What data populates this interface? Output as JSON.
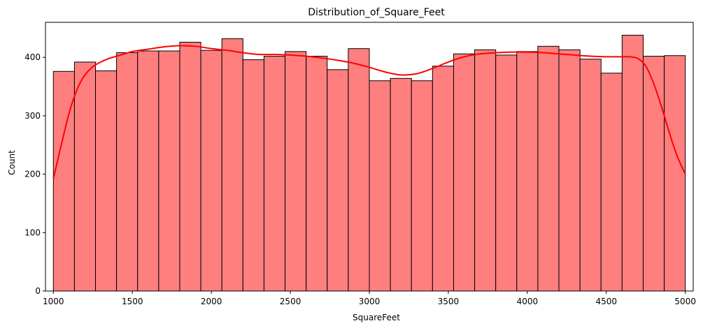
{
  "colors": {
    "bar_fill": "#ff7f7f",
    "bar_edge": "#000000",
    "kde_line": "#ff0000",
    "background": "#ffffff"
  },
  "chart_data": {
    "type": "bar",
    "subtype": "histogram_with_kde",
    "title": "Distribution_of_Square_Feet",
    "xlabel": "SquareFeet",
    "ylabel": "Count",
    "xlim": [
      950,
      5050
    ],
    "ylim": [
      0,
      460
    ],
    "xticks": [
      1000,
      1500,
      2000,
      2500,
      3000,
      3500,
      4000,
      4500,
      5000
    ],
    "yticks": [
      0,
      100,
      200,
      300,
      400
    ],
    "grid": false,
    "bin_start": 1000,
    "bin_end": 5000,
    "bin_counts": [
      376,
      392,
      377,
      408,
      411,
      411,
      426,
      412,
      432,
      396,
      402,
      410,
      402,
      379,
      415,
      360,
      364,
      360,
      385,
      406,
      413,
      404,
      410,
      419,
      413,
      397,
      373,
      438,
      402,
      403
    ],
    "kde": {
      "x": [
        1000,
        1050,
        1100,
        1150,
        1200,
        1250,
        1300,
        1350,
        1400,
        1500,
        1600,
        1700,
        1800,
        1900,
        2000,
        2100,
        2200,
        2300,
        2400,
        2500,
        2600,
        2700,
        2800,
        2900,
        3000,
        3100,
        3200,
        3300,
        3400,
        3500,
        3600,
        3700,
        3800,
        3900,
        4000,
        4100,
        4200,
        4300,
        4400,
        4500,
        4600,
        4650,
        4700,
        4750,
        4800,
        4850,
        4900,
        4950,
        5000
      ],
      "y": [
        192,
        250,
        305,
        345,
        370,
        384,
        392,
        398,
        402,
        410,
        414,
        418,
        420,
        419,
        415,
        412,
        408,
        405,
        405,
        404,
        402,
        399,
        395,
        390,
        383,
        375,
        370,
        372,
        381,
        392,
        401,
        406,
        408,
        409,
        409,
        408,
        406,
        404,
        402,
        401,
        401,
        401,
        398,
        385,
        355,
        315,
        270,
        230,
        200
      ]
    }
  }
}
